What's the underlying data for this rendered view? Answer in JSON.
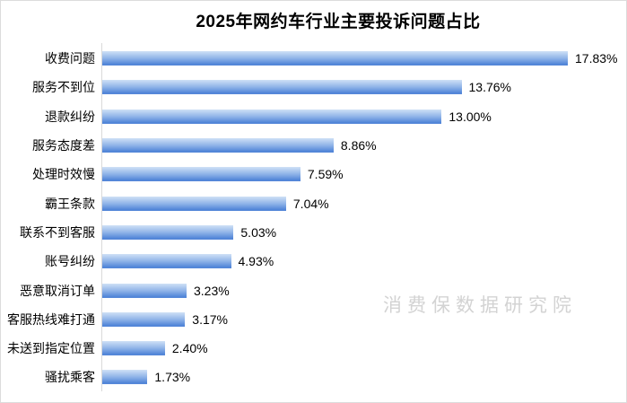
{
  "title": "2025年网约车行业主要投诉问题占比",
  "watermark": "消费保数据研究院",
  "colors": {
    "bar_gradient_top": "#cfe1f6",
    "bar_gradient_mid": "#8fb3e8",
    "bar_gradient_bottom": "#4a80d6",
    "axis_line": "#d9d9d9",
    "frame_border": "#dcdcdc",
    "text": "#000000",
    "watermark_text": "#d3d3d3"
  },
  "chart_data": {
    "type": "bar",
    "orientation": "horizontal",
    "title": "2025年网约车行业主要投诉问题占比",
    "xlabel": "",
    "ylabel": "",
    "xlim": [
      0,
      20
    ],
    "grid": false,
    "legend": false,
    "value_unit": "%",
    "categories": [
      "收费问题",
      "服务不到位",
      "退款纠纷",
      "服务态度差",
      "处理时效慢",
      "霸王条款",
      "联系不到客服",
      "账号纠纷",
      "恶意取消订单",
      "客服热线难打通",
      "未送到指定位置",
      "骚扰乘客"
    ],
    "values": [
      17.83,
      13.76,
      13.0,
      8.86,
      7.59,
      7.04,
      5.03,
      4.93,
      3.23,
      3.17,
      2.4,
      1.73
    ],
    "value_labels": [
      "17.83%",
      "13.76%",
      "13.00%",
      "8.86%",
      "7.59%",
      "7.04%",
      "5.03%",
      "4.93%",
      "3.23%",
      "3.17%",
      "2.40%",
      "1.73%"
    ]
  }
}
